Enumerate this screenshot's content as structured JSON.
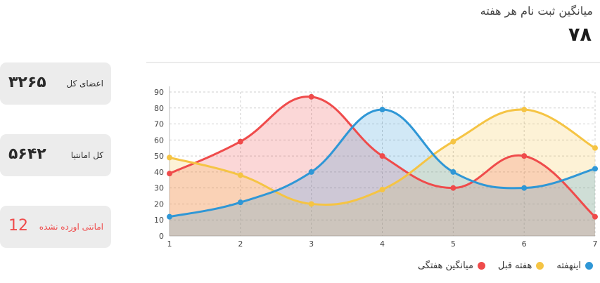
{
  "header": {
    "title": "میانگین ثبت نام هر هفته",
    "value": "۷۸"
  },
  "stats": [
    {
      "label": "اعضای کل",
      "value": "۳۲۶۵"
    },
    {
      "label": "کل امانتیا",
      "value": "۵۶۴۲"
    },
    {
      "label": "امانتی اورده نشده",
      "value": "12"
    }
  ],
  "colors": {
    "red": "#ef4b4b",
    "yellow": "#f5c444",
    "blue": "#2f97d6"
  },
  "chart_data": {
    "type": "area",
    "x": [
      1,
      2,
      3,
      4,
      5,
      6,
      7
    ],
    "ylim": [
      0,
      90
    ],
    "y_ticks": [
      0,
      10,
      20,
      30,
      40,
      50,
      60,
      70,
      80,
      90
    ],
    "grid": true,
    "legend_position": "bottom-right",
    "series": [
      {
        "name": "میانگین هفتگی",
        "color": "#ef4b4b",
        "values": [
          39,
          59,
          87,
          50,
          30,
          50,
          12
        ]
      },
      {
        "name": "هفته قبل",
        "color": "#f5c444",
        "values": [
          49,
          38,
          20,
          29,
          59,
          79,
          55
        ]
      },
      {
        "name": "اینهفته",
        "color": "#2f97d6",
        "values": [
          12,
          21,
          40,
          79,
          40,
          30,
          42
        ]
      }
    ]
  }
}
